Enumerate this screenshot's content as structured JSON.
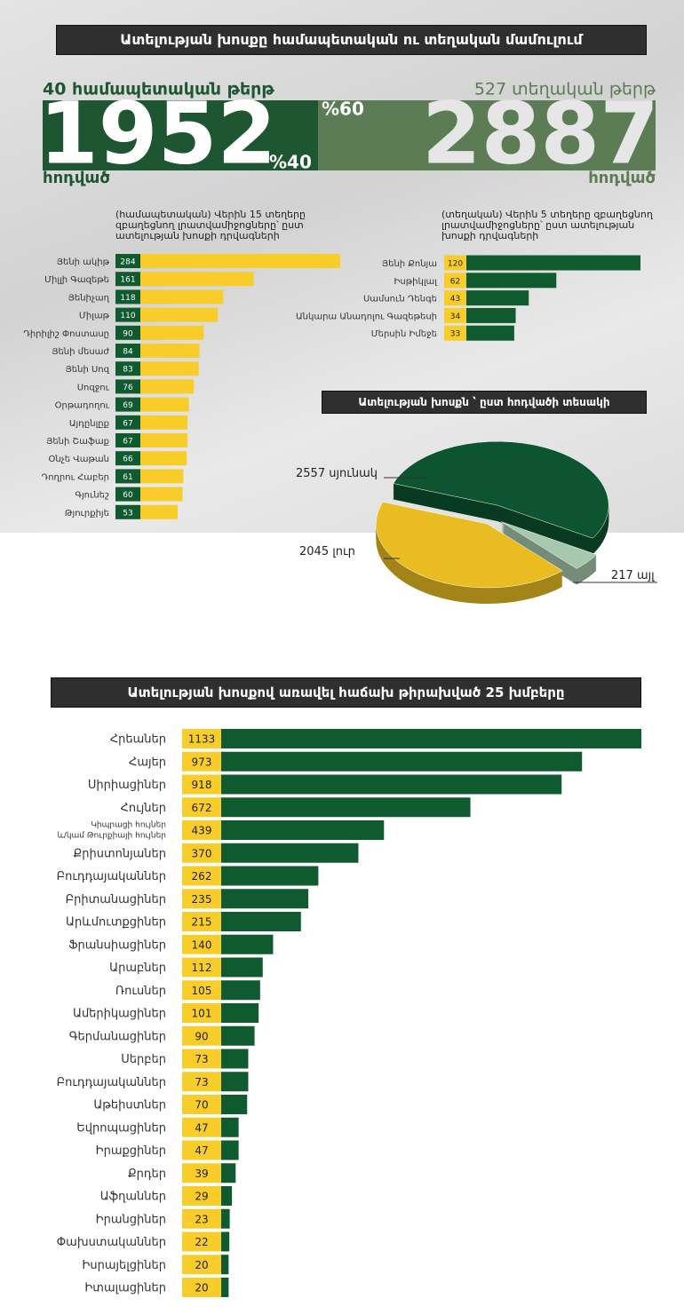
{
  "header": {
    "title": "Ատելության խոսքը համապետական ու տեղական մամուլում",
    "national": {
      "papers": "40 համապետական թերթ",
      "articles": "1952",
      "unit": "հոդված",
      "share": "%40"
    },
    "local": {
      "papers": "527 տեղական թերթ",
      "articles": "2887",
      "unit": "հոդված",
      "share": "%60"
    }
  },
  "chart_data": [
    {
      "type": "hbar",
      "title": "(համապետական) Վերին 15 տեղերը զբաղեցնող լրատվամիջոցները՝ ըստ ատելության խոսքի դրվագների",
      "categories": [
        "Յենի ակիթ",
        "Միլլի Գազեթե",
        "Յենիչաղ",
        "Միլաթ",
        "Դիրիլիշ Փոստասը",
        "Յենի մեսաժ",
        "Յենի Սոզ",
        "Սոզջու",
        "Օրթադողու",
        "Այդընլըք",
        "Յենի Շաֆաք",
        "Օնչե Վաթան",
        "Դողրու Հաբեր",
        "Գյունեշ",
        "Թյուրքիյե"
      ],
      "values": [
        284,
        161,
        118,
        110,
        90,
        84,
        83,
        76,
        69,
        67,
        67,
        66,
        61,
        60,
        53
      ],
      "color": "#f8cd2a",
      "label_box_color": "#0f5a2f",
      "label_text_color": "#ffffff"
    },
    {
      "type": "hbar",
      "title": "(տեղական) Վերին 5 տեղերը զբաղեցնող լրատվամիջոցները՝ ըստ ատելության խոսքի դրվագների",
      "categories": [
        "Յենի Քոնյա",
        "Իսթիկլալ",
        "Սամսուն Դենգե",
        "Անկարա Անադոլու Գազեթեսի",
        "Մերսին Իմեջե"
      ],
      "values": [
        120,
        62,
        43,
        34,
        33
      ],
      "color": "#0f5a2f",
      "label_box_color": "#f8cd2a",
      "label_text_color": "#222222"
    },
    {
      "type": "pie",
      "title": "Ատելության խոսքն ՝ ըստ հոդվածի տեսակի",
      "categories": [
        "սյունակ",
        "այլ",
        "լուր"
      ],
      "values": [
        2557,
        217,
        2045
      ],
      "colors": [
        "#0d5530",
        "#a6c8ad",
        "#e9bd22"
      ]
    },
    {
      "type": "hbar",
      "title": "Ատելության խոսքով առավել հաճախ թիրախված 25 խմբերը",
      "categories": [
        "Հրեաներ",
        "Հայեր",
        "Սիրիացիներ",
        "Հույներ",
        [
          "Կիպրացի հույներ",
          "և/կամ Թուրքիայի հույներ"
        ],
        "Քրիստոնյաներ",
        "Բուդդայականներ",
        "Բրիտանացիներ",
        "Արևմուտքցիներ",
        "Ֆրանսիացիներ",
        "Արաբներ",
        "Ռուսներ",
        "Ամերիկացիներ",
        "Գերմանացիներ",
        "Սերբեր",
        "Բուդդայականներ",
        "Աթեիստներ",
        "Եվրոպացիներ",
        "Իրաքցիներ",
        "Քրդեր",
        "Աֆղաններ",
        "Իրանցիներ",
        "Փախստականներ",
        "Իսրայելցիներ",
        "Իտալացիներ"
      ],
      "values": [
        1133,
        973,
        918,
        672,
        439,
        370,
        262,
        235,
        215,
        140,
        112,
        105,
        101,
        90,
        73,
        73,
        70,
        47,
        47,
        39,
        29,
        23,
        22,
        20,
        20
      ],
      "color": "#0f5a2f",
      "label_box_color": "#f8cd2a",
      "label_text_color": "#222222"
    }
  ]
}
